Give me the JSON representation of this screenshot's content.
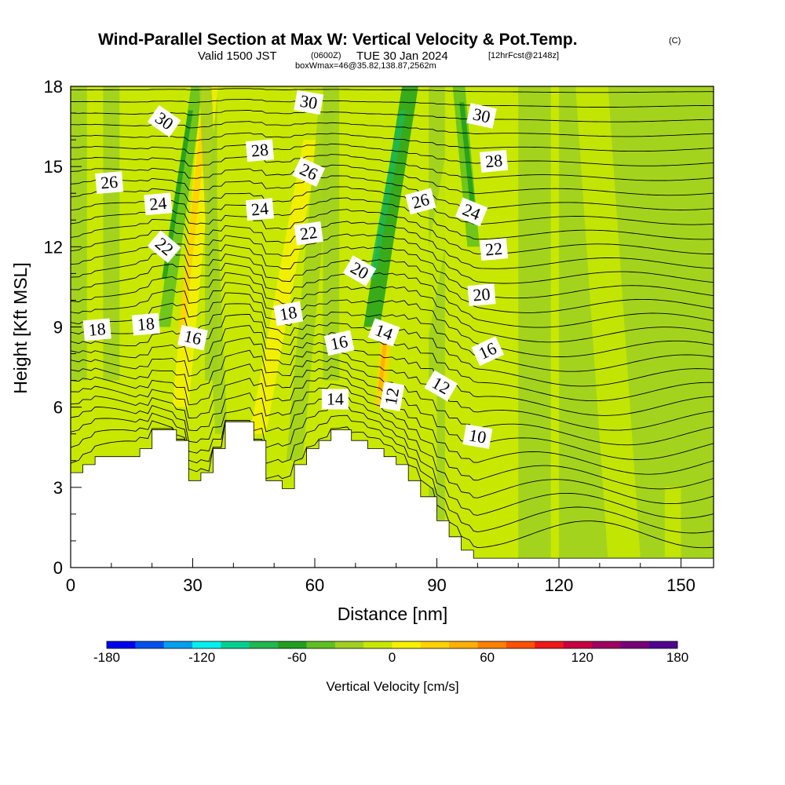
{
  "figure": {
    "title": "Wind-Parallel Section at Max W: Vertical Velocity & Pot.Temp.",
    "title_tag": "(C)",
    "subtitle_valid": "Valid 1500 JST",
    "subtitle_utc": "(0600Z)",
    "subtitle_date": "TUE 30 Jan 2024",
    "subtitle_fcst": "[12hrFcst@2148z]",
    "subtitle_box": "boxWmax=46@35.82,138.87,2562m"
  },
  "chart_data": {
    "type": "heatmap",
    "xlabel": "Distance [nm]",
    "ylabel": "Height [Kft MSL]",
    "xlim": [
      0,
      158
    ],
    "ylim": [
      0,
      18
    ],
    "xticks": [
      0,
      30,
      60,
      90,
      120,
      150
    ],
    "xtick_labels": [
      "0",
      "30",
      "60",
      "90",
      "120",
      "150"
    ],
    "yticks": [
      0,
      3,
      6,
      9,
      12,
      15,
      18
    ],
    "ytick_labels": [
      "0",
      "3",
      "6",
      "9",
      "12",
      "15",
      "18"
    ],
    "colorbar": {
      "title": "Vertical Velocity [cm/s]",
      "min": -180,
      "max": 180,
      "step": 20,
      "tick_values": [
        -180,
        -120,
        -60,
        0,
        60,
        120,
        180
      ],
      "tick_labels": [
        "-180",
        "-120",
        "-60",
        "0",
        "60",
        "120",
        "180"
      ],
      "colors": [
        "#0000f0",
        "#0050f0",
        "#00a0f0",
        "#00f0f0",
        "#00d090",
        "#20b850",
        "#20a020",
        "#60c020",
        "#a0d020",
        "#c8e800",
        "#f8f000",
        "#ffd200",
        "#ffb000",
        "#ff8000",
        "#ff5000",
        "#f01818",
        "#c80040",
        "#a00060",
        "#780078",
        "#500090"
      ]
    },
    "terrain_kft": [
      [
        0,
        3.55
      ],
      [
        3,
        3.55
      ],
      [
        3,
        3.85
      ],
      [
        6,
        3.85
      ],
      [
        6,
        4.15
      ],
      [
        17,
        4.15
      ],
      [
        17,
        4.45
      ],
      [
        20,
        4.45
      ],
      [
        20,
        5.15
      ],
      [
        26,
        5.15
      ],
      [
        26,
        4.75
      ],
      [
        29,
        4.75
      ],
      [
        29,
        3.25
      ],
      [
        32,
        3.25
      ],
      [
        32,
        3.55
      ],
      [
        35,
        3.55
      ],
      [
        35,
        4.45
      ],
      [
        38,
        4.45
      ],
      [
        38,
        5.45
      ],
      [
        45,
        5.45
      ],
      [
        45,
        4.75
      ],
      [
        48,
        4.75
      ],
      [
        48,
        3.25
      ],
      [
        52,
        3.25
      ],
      [
        52,
        2.95
      ],
      [
        55,
        2.95
      ],
      [
        55,
        3.85
      ],
      [
        58,
        3.85
      ],
      [
        58,
        4.45
      ],
      [
        61,
        4.45
      ],
      [
        61,
        4.75
      ],
      [
        64,
        4.75
      ],
      [
        64,
        5.15
      ],
      [
        69,
        5.15
      ],
      [
        69,
        4.75
      ],
      [
        73,
        4.75
      ],
      [
        73,
        4.45
      ],
      [
        77,
        4.45
      ],
      [
        77,
        4.15
      ],
      [
        80,
        4.15
      ],
      [
        80,
        3.85
      ],
      [
        83,
        3.85
      ],
      [
        83,
        3.25
      ],
      [
        86,
        3.25
      ],
      [
        86,
        2.65
      ],
      [
        90,
        2.65
      ],
      [
        90,
        1.75
      ],
      [
        93,
        1.75
      ],
      [
        93,
        1.15
      ],
      [
        96,
        1.15
      ],
      [
        96,
        0.65
      ],
      [
        99,
        0.65
      ],
      [
        99,
        0.35
      ],
      [
        102,
        0.35
      ],
      [
        102,
        0.35
      ],
      [
        158,
        0.35
      ]
    ],
    "w_features": [
      {
        "x": 23,
        "width": 3,
        "z0": 9,
        "z1": 18,
        "value": -30,
        "tilt": 0.3
      },
      {
        "x": 27,
        "width": 4,
        "z0": 6,
        "z1": 18,
        "value": 30,
        "tilt": 0.2
      },
      {
        "x": 37,
        "width": 3,
        "z0": 5,
        "z1": 18,
        "value": -20,
        "tilt": -0.1
      },
      {
        "x": 46,
        "width": 4,
        "z0": 5,
        "z1": 16,
        "value": 25,
        "tilt": 0.4
      },
      {
        "x": 55,
        "width": 4,
        "z0": 4,
        "z1": 17,
        "value": -20,
        "tilt": 0.2
      },
      {
        "x": 74,
        "width": 4,
        "z0": 9,
        "z1": 18,
        "value": -50,
        "tilt": 0.35
      },
      {
        "x": 76,
        "width": 2.5,
        "z0": 6,
        "z1": 9,
        "value": 45,
        "tilt": 0.2
      },
      {
        "x": 84,
        "width": 4,
        "z0": 7,
        "z1": 17,
        "value": 15,
        "tilt": 0.4
      },
      {
        "x": 99,
        "width": 3,
        "z0": 12,
        "z1": 18,
        "value": -40,
        "tilt": -0.2
      },
      {
        "x": 104,
        "width": 4,
        "z0": 9,
        "z1": 18,
        "value": 15,
        "tilt": -0.1
      },
      {
        "x": 136,
        "width": 8,
        "z0": 0.4,
        "z1": 18,
        "value": 8,
        "tilt": -0.15
      },
      {
        "x": 148,
        "width": 4,
        "z0": 0.4,
        "z1": 3,
        "value": 12,
        "tilt": 0
      }
    ],
    "theta_contours": {
      "levels": [
        10,
        12,
        14,
        16,
        18,
        20,
        22,
        24,
        26,
        28,
        30
      ],
      "labels": [
        {
          "text": "30",
          "x": 23,
          "z": 16.7,
          "angle": 35
        },
        {
          "text": "30",
          "x": 58.5,
          "z": 17.4,
          "angle": 10
        },
        {
          "text": "30",
          "x": 101,
          "z": 16.9,
          "angle": 12
        },
        {
          "text": "28",
          "x": 46.5,
          "z": 15.6,
          "angle": -5
        },
        {
          "text": "28",
          "x": 104,
          "z": 15.2,
          "angle": -5
        },
        {
          "text": "26",
          "x": 9.5,
          "z": 14.4,
          "angle": -5
        },
        {
          "text": "26",
          "x": 58.5,
          "z": 14.8,
          "angle": 25
        },
        {
          "text": "26",
          "x": 86,
          "z": 13.7,
          "angle": -15
        },
        {
          "text": "24",
          "x": 21.5,
          "z": 13.6,
          "angle": -5
        },
        {
          "text": "24",
          "x": 46.5,
          "z": 13.4,
          "angle": -5
        },
        {
          "text": "24",
          "x": 98.5,
          "z": 13.3,
          "angle": 22
        },
        {
          "text": "22",
          "x": 23,
          "z": 12.0,
          "angle": 40
        },
        {
          "text": "22",
          "x": 58.5,
          "z": 12.5,
          "angle": -8
        },
        {
          "text": "22",
          "x": 104,
          "z": 11.9,
          "angle": -5
        },
        {
          "text": "20",
          "x": 71,
          "z": 11.1,
          "angle": 30
        },
        {
          "text": "20",
          "x": 101,
          "z": 10.2,
          "angle": -5
        },
        {
          "text": "18",
          "x": 6.5,
          "z": 8.9,
          "angle": -5
        },
        {
          "text": "18",
          "x": 18.5,
          "z": 9.1,
          "angle": -5
        },
        {
          "text": "18",
          "x": 53.5,
          "z": 9.5,
          "angle": -10
        },
        {
          "text": "16",
          "x": 30,
          "z": 8.6,
          "angle": 12
        },
        {
          "text": "16",
          "x": 66,
          "z": 8.4,
          "angle": -12
        },
        {
          "text": "16",
          "x": 102.5,
          "z": 8.1,
          "angle": -25
        },
        {
          "text": "14",
          "x": 65,
          "z": 6.3,
          "angle": 0
        },
        {
          "text": "14",
          "x": 77,
          "z": 8.8,
          "angle": 20
        },
        {
          "text": "12",
          "x": 79,
          "z": 6.4,
          "angle": -80
        },
        {
          "text": "12",
          "x": 91,
          "z": 6.8,
          "angle": 30
        },
        {
          "text": "10",
          "x": 100,
          "z": 4.9,
          "angle": 10
        }
      ]
    }
  }
}
